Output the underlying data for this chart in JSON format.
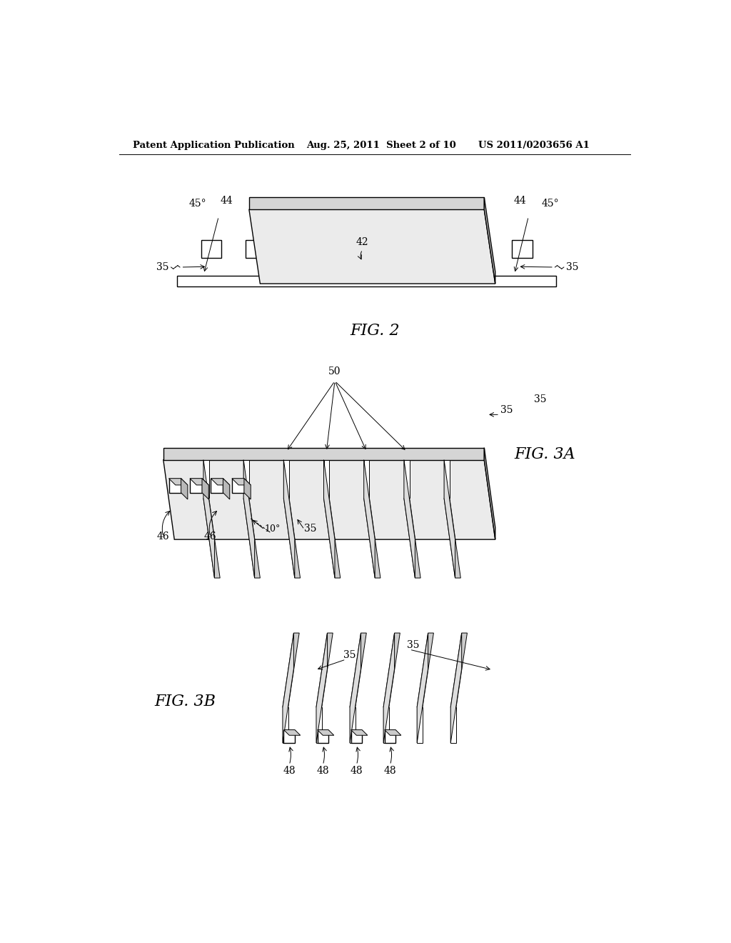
{
  "bg_color": "#ffffff",
  "header_left": "Patent Application Publication",
  "header_mid": "Aug. 25, 2011  Sheet 2 of 10",
  "header_right": "US 2011/0203656 A1",
  "fig2_label": "FIG. 2",
  "fig3a_label": "FIG. 3A",
  "fig3b_label": "FIG. 3B",
  "line_color": "#000000",
  "lw": 1.0,
  "thin": 0.7
}
